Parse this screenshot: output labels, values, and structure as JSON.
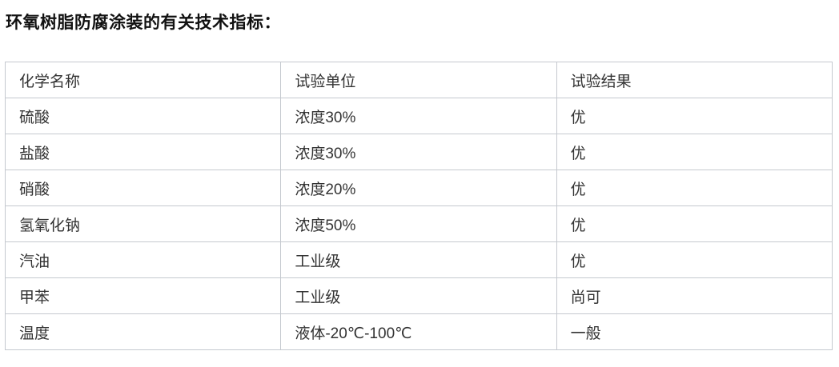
{
  "page_title": "环氧树脂防腐涂装的有关技术指标：",
  "table": {
    "headers": [
      "化学名称",
      "试验单位",
      "试验结果"
    ],
    "rows": [
      [
        "硫酸",
        "浓度30%",
        "优"
      ],
      [
        "盐酸",
        "浓度30%",
        "优"
      ],
      [
        "硝酸",
        "浓度20%",
        "优"
      ],
      [
        "氢氧化钠",
        "浓度50%",
        "优"
      ],
      [
        "汽油",
        "工业级",
        "优"
      ],
      [
        "甲苯",
        "工业级",
        "尚可"
      ],
      [
        "温度",
        "液体-20℃-100℃",
        "一般"
      ]
    ]
  },
  "colors": {
    "title_text": "#111111",
    "cell_text": "#333333",
    "table_border": "#c5c9cf",
    "background": "#ffffff"
  }
}
